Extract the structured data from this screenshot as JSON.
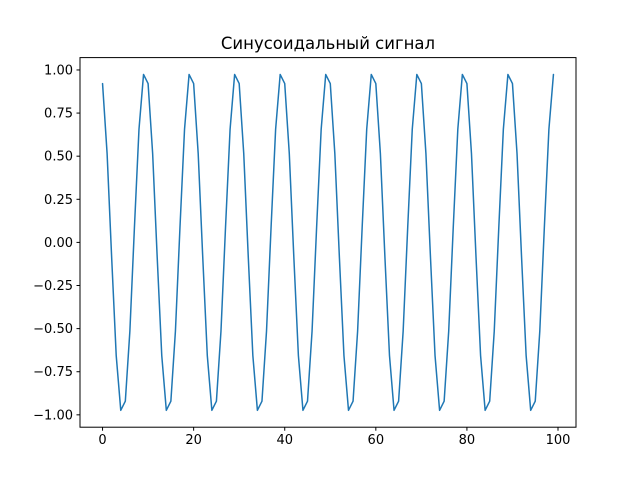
{
  "figure": {
    "title": "Синусоидальный сигнал"
  },
  "colors": {
    "line": "#1f77b4",
    "axis": "#000000",
    "text": "#000000",
    "background": "#ffffff"
  },
  "chart_data": {
    "type": "line",
    "title": "Синусоидальный сигнал",
    "xlabel": "",
    "ylabel": "",
    "grid": false,
    "legend": null,
    "xlim": [
      -4.95,
      103.95
    ],
    "ylim": [
      -1.0717,
      1.0717
    ],
    "x_ticks": [
      0,
      20,
      40,
      60,
      80,
      100
    ],
    "x_tick_labels": [
      "0",
      "20",
      "40",
      "60",
      "80",
      "100"
    ],
    "y_ticks": [
      1.0,
      0.75,
      0.5,
      0.25,
      0.0,
      -0.25,
      -0.5,
      -0.75,
      -1.0
    ],
    "y_tick_labels": [
      "1.00",
      "0.75",
      "0.50",
      "0.25",
      "0.00",
      "−0.25",
      "−0.50",
      "−0.75",
      "−1.00"
    ],
    "x_start": 0,
    "x_step": 1,
    "y_values": [
      0.921,
      0.515,
      -0.087,
      -0.656,
      -0.974,
      -0.921,
      -0.515,
      0.087,
      0.656,
      0.974,
      0.921,
      0.515,
      -0.087,
      -0.656,
      -0.974,
      -0.921,
      -0.515,
      0.087,
      0.656,
      0.974,
      0.921,
      0.515,
      -0.087,
      -0.656,
      -0.974,
      -0.921,
      -0.515,
      0.087,
      0.656,
      0.974,
      0.921,
      0.515,
      -0.087,
      -0.656,
      -0.974,
      -0.921,
      -0.515,
      0.087,
      0.656,
      0.974,
      0.921,
      0.515,
      -0.087,
      -0.656,
      -0.974,
      -0.921,
      -0.515,
      0.087,
      0.656,
      0.974,
      0.921,
      0.515,
      -0.087,
      -0.656,
      -0.974,
      -0.921,
      -0.515,
      0.087,
      0.656,
      0.974,
      0.921,
      0.515,
      -0.087,
      -0.656,
      -0.974,
      -0.921,
      -0.515,
      0.087,
      0.656,
      0.974,
      0.921,
      0.515,
      -0.087,
      -0.656,
      -0.974,
      -0.921,
      -0.515,
      0.087,
      0.656,
      0.974,
      0.921,
      0.515,
      -0.087,
      -0.656,
      -0.974,
      -0.921,
      -0.515,
      0.087,
      0.656,
      0.974,
      0.921,
      0.515,
      -0.087,
      -0.656,
      -0.974,
      -0.921,
      -0.515,
      0.087,
      0.656,
      0.974
    ]
  }
}
